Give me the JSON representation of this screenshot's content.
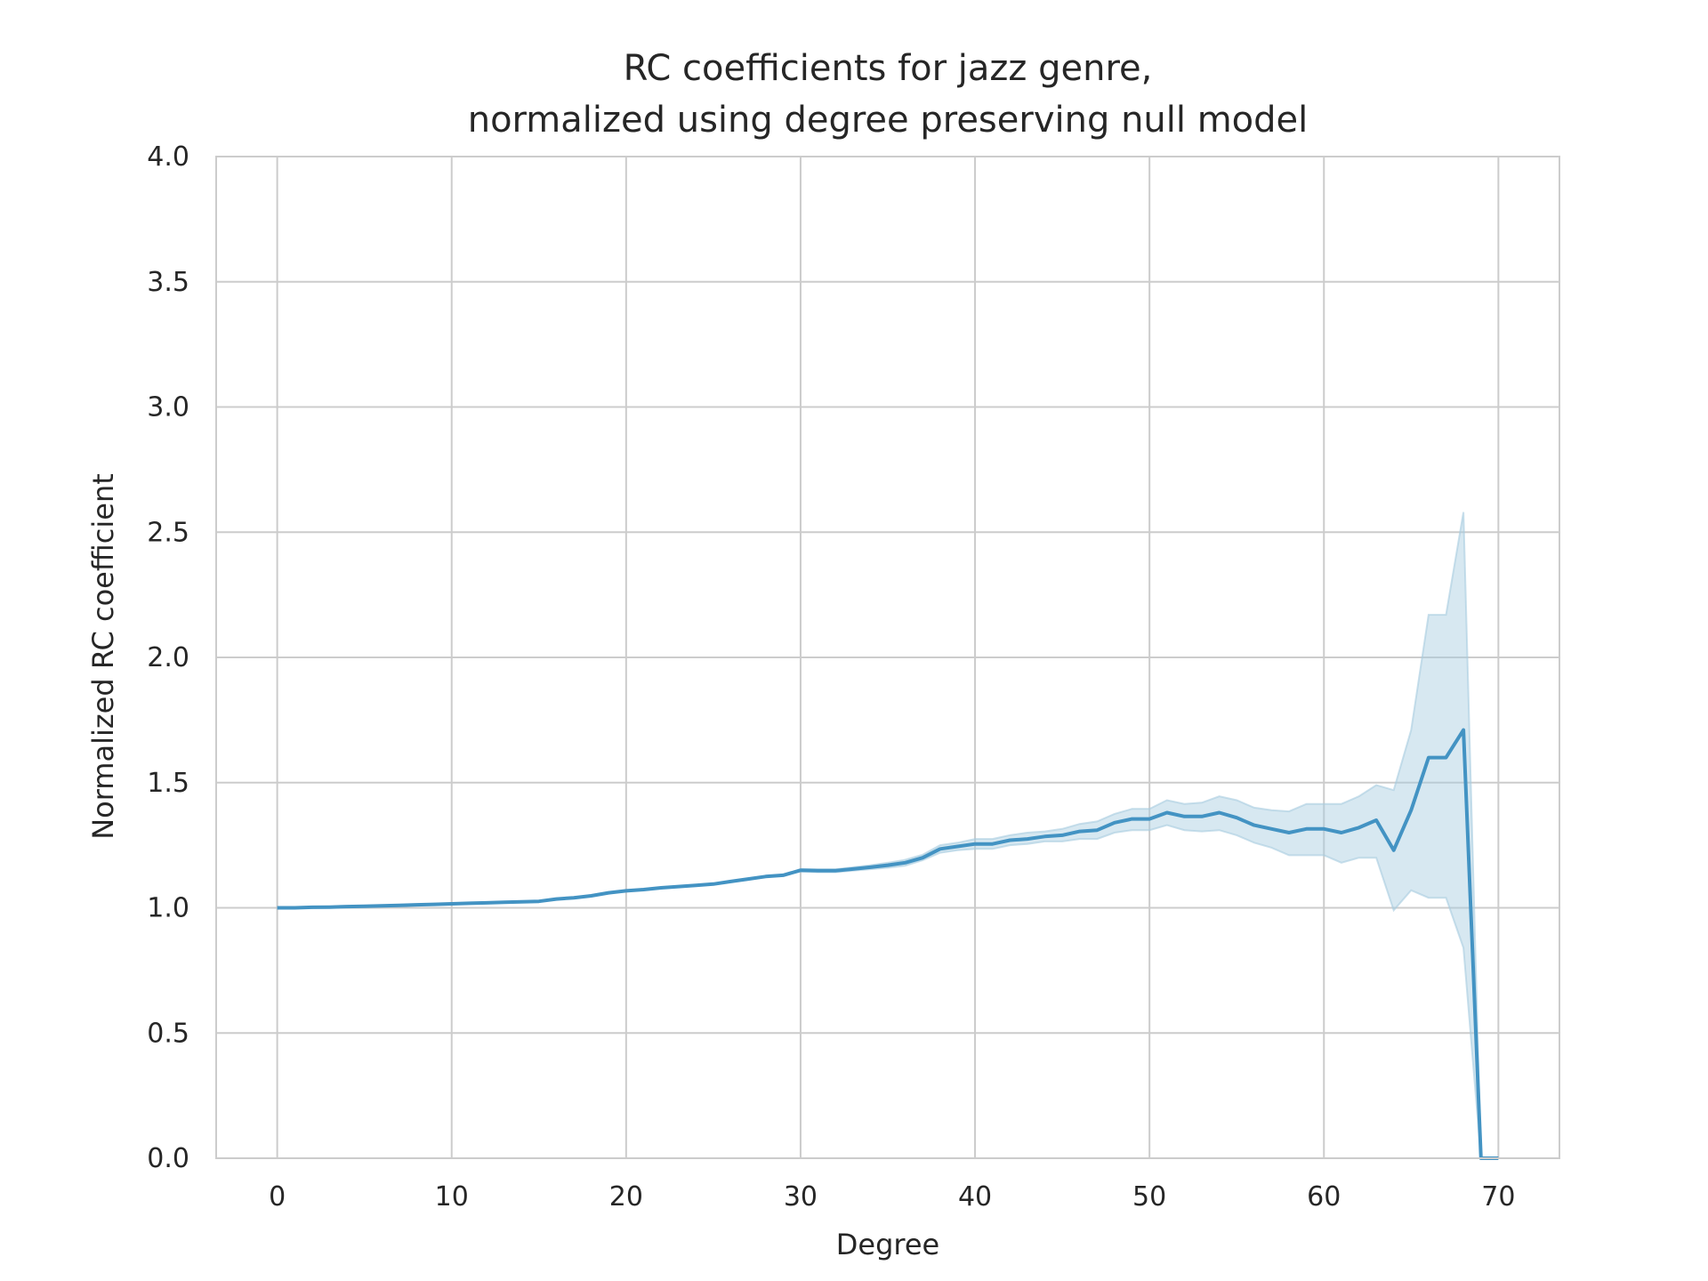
{
  "chart_data": {
    "type": "line",
    "title_lines": [
      "RC coefficients for jazz genre,",
      "normalized using degree preserving null model"
    ],
    "xlabel": "Degree",
    "ylabel": "Normalized RC coefficient",
    "xlim": [
      -3.5,
      73.5
    ],
    "ylim": [
      0,
      4.0
    ],
    "xticks": [
      0,
      10,
      20,
      30,
      40,
      50,
      60,
      70
    ],
    "xtick_labels": [
      "0",
      "10",
      "20",
      "30",
      "40",
      "50",
      "60",
      "70"
    ],
    "yticks": [
      0,
      0.5,
      1.0,
      1.5,
      2.0,
      2.5,
      3.0,
      3.5,
      4.0
    ],
    "ytick_labels": [
      "0.0",
      "0.5",
      "1.0",
      "1.5",
      "2.0",
      "2.5",
      "3.0",
      "3.5",
      "4.0"
    ],
    "grid": true,
    "line_color": "#4393c3",
    "band_color": "#a6cbe0",
    "series": [
      {
        "x": [
          0,
          1,
          2,
          3,
          4,
          5,
          6,
          7,
          8,
          9,
          10,
          11,
          12,
          13,
          14,
          15,
          16,
          17,
          18,
          19,
          20,
          21,
          22,
          23,
          24,
          25,
          26,
          27,
          28,
          29,
          30,
          31,
          32,
          33,
          34,
          35,
          36,
          37,
          38,
          39,
          40,
          41,
          42,
          43,
          44,
          45,
          46,
          47,
          48,
          49,
          50,
          51,
          52,
          53,
          54,
          55,
          56,
          57,
          58,
          59,
          60,
          61,
          62,
          63,
          64,
          65,
          66,
          67,
          68,
          69,
          70
        ],
        "y": [
          1.0,
          1.0,
          1.002,
          1.003,
          1.005,
          1.006,
          1.008,
          1.01,
          1.012,
          1.014,
          1.016,
          1.018,
          1.02,
          1.022,
          1.024,
          1.026,
          1.035,
          1.04,
          1.048,
          1.06,
          1.068,
          1.073,
          1.08,
          1.085,
          1.09,
          1.095,
          1.105,
          1.115,
          1.125,
          1.13,
          1.15,
          1.148,
          1.148,
          1.155,
          1.162,
          1.17,
          1.18,
          1.2,
          1.235,
          1.245,
          1.255,
          1.255,
          1.27,
          1.275,
          1.285,
          1.29,
          1.305,
          1.31,
          1.34,
          1.355,
          1.355,
          1.38,
          1.365,
          1.365,
          1.38,
          1.36,
          1.33,
          1.315,
          1.3,
          1.315,
          1.315,
          1.3,
          1.32,
          1.35,
          1.23,
          1.39,
          1.6,
          1.6,
          1.71,
          0.0,
          0.0
        ],
        "lower": [
          1.0,
          1.0,
          1.002,
          1.003,
          1.005,
          1.006,
          1.008,
          1.01,
          1.012,
          1.014,
          1.016,
          1.018,
          1.02,
          1.022,
          1.024,
          1.026,
          1.035,
          1.04,
          1.048,
          1.06,
          1.068,
          1.073,
          1.08,
          1.085,
          1.09,
          1.095,
          1.105,
          1.115,
          1.125,
          1.13,
          1.145,
          1.142,
          1.142,
          1.148,
          1.154,
          1.16,
          1.168,
          1.19,
          1.22,
          1.23,
          1.235,
          1.235,
          1.25,
          1.255,
          1.265,
          1.265,
          1.275,
          1.275,
          1.3,
          1.31,
          1.31,
          1.33,
          1.31,
          1.305,
          1.31,
          1.29,
          1.26,
          1.24,
          1.21,
          1.21,
          1.21,
          1.18,
          1.2,
          1.2,
          0.99,
          1.07,
          1.04,
          1.04,
          0.84,
          0.0,
          0.0
        ],
        "upper": [
          1.0,
          1.0,
          1.002,
          1.003,
          1.005,
          1.006,
          1.008,
          1.01,
          1.012,
          1.014,
          1.016,
          1.018,
          1.02,
          1.022,
          1.024,
          1.026,
          1.035,
          1.04,
          1.048,
          1.06,
          1.068,
          1.073,
          1.08,
          1.085,
          1.09,
          1.095,
          1.105,
          1.115,
          1.125,
          1.13,
          1.155,
          1.154,
          1.154,
          1.162,
          1.17,
          1.18,
          1.192,
          1.212,
          1.25,
          1.26,
          1.275,
          1.275,
          1.29,
          1.3,
          1.305,
          1.315,
          1.335,
          1.345,
          1.375,
          1.395,
          1.395,
          1.43,
          1.415,
          1.42,
          1.445,
          1.43,
          1.4,
          1.39,
          1.385,
          1.415,
          1.415,
          1.415,
          1.445,
          1.49,
          1.47,
          1.71,
          2.17,
          2.17,
          2.58,
          0.0,
          0.0
        ]
      }
    ]
  }
}
